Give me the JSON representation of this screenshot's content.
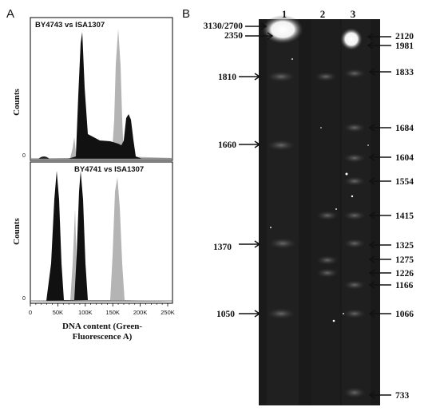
{
  "panel_a": {
    "label": "A",
    "top_title": "BY4743 vs ISA1307",
    "bottom_title": "BY4741 vs ISA1307",
    "ylabel": "Counts",
    "zero": "0",
    "x_ticks": [
      "0",
      "50K",
      "100K",
      "150K",
      "200K",
      "250K"
    ],
    "xlabel_line1": "DNA content (Green-",
    "xlabel_line2": "Fluorescence A)"
  },
  "panel_b": {
    "label": "B",
    "lanes": [
      "1",
      "2",
      "3"
    ],
    "left_markers": [
      "3130/2700",
      "2350",
      "1810",
      "1660",
      "1370",
      "1050"
    ],
    "right_markers": [
      "2120",
      "1981",
      "1833",
      "1684",
      "1604",
      "1554",
      "1415",
      "1325",
      "1275",
      "1226",
      "1166",
      "1066",
      "733"
    ]
  },
  "colors": {
    "sample_series": "#111111",
    "reference_series": "#b4b4b4",
    "gel_background": "#1a1a1a"
  }
}
